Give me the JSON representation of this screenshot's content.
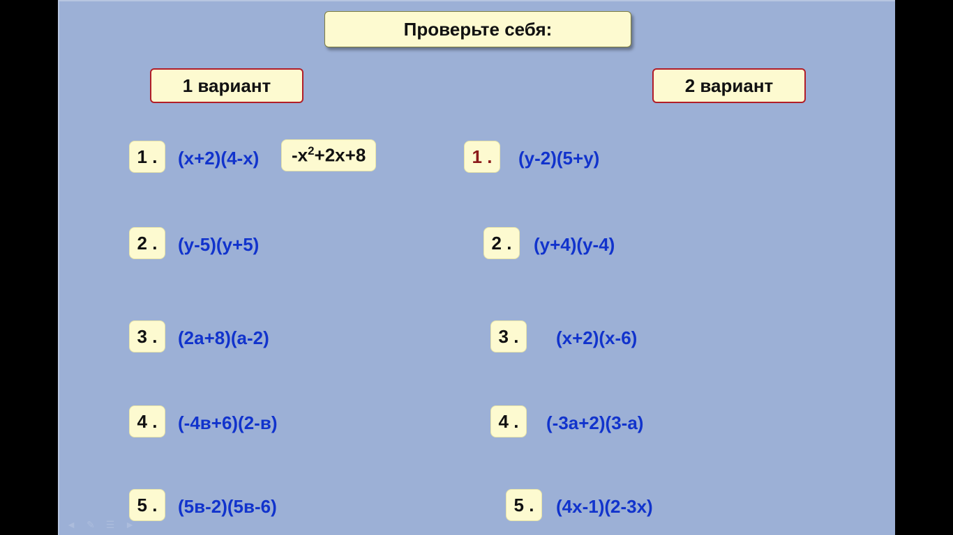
{
  "colors": {
    "slide_bg": "#9cb0d6",
    "box_bg": "#fdfad0",
    "box_border_red": "#b11d28",
    "box_border_soft": "#e8e4a8",
    "text_dark": "#111111",
    "text_blue": "#1133cc",
    "text_darkred": "#8b1a1a",
    "page_bg": "#000000"
  },
  "title": "Проверьте себя:",
  "variants": {
    "left": "1 вариант",
    "right": "2 вариант"
  },
  "left": {
    "items": [
      {
        "num": "1 .",
        "expr": "(x+2)(4-x)",
        "answer_html": "-x<sup>2</sup>+2x+8"
      },
      {
        "num": "2 .",
        "expr": "(y-5)(y+5)"
      },
      {
        "num": "3 .",
        "expr": "(2a+8)(a-2)"
      },
      {
        "num": "4 .",
        "expr": "(-4в+6)(2-в)"
      },
      {
        "num": "5 .",
        "expr": "(5в-2)(5в-6)"
      }
    ]
  },
  "right": {
    "items": [
      {
        "num": "1 .",
        "expr": "(y-2)(5+y)",
        "num_red": true
      },
      {
        "num": "2 .",
        "expr": "(y+4)(y-4)"
      },
      {
        "num": "3 .",
        "expr": "(x+2)(x-6)"
      },
      {
        "num": "4 .",
        "expr": "(-3a+2)(3-a)"
      },
      {
        "num": "5 .",
        "expr": "(4x-1)(2-3x)"
      }
    ]
  },
  "nav_icons": [
    "arrow-left",
    "pen",
    "menu",
    "arrow-right"
  ]
}
